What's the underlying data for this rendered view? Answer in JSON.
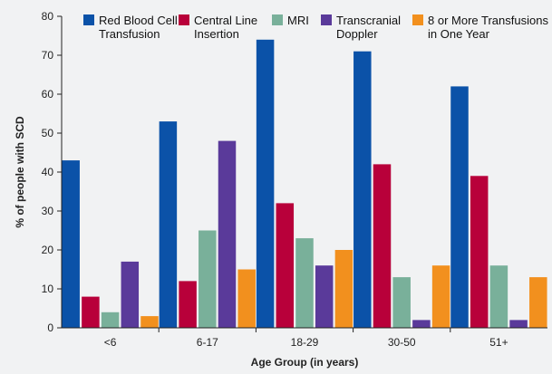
{
  "chart_data": {
    "type": "bar",
    "categories": [
      "<6",
      "6-17",
      "18-29",
      "30-50",
      "51+"
    ],
    "series": [
      {
        "name": "Red Blood Cell Transfusion",
        "name_lines": [
          "Red Blood Cell",
          "Transfusion"
        ],
        "color": "#0b52a8",
        "values": [
          43,
          53,
          74,
          71,
          62
        ]
      },
      {
        "name": "Central Line Insertion",
        "name_lines": [
          "Central Line",
          "Insertion"
        ],
        "color": "#b8003a",
        "values": [
          8,
          12,
          32,
          42,
          39
        ]
      },
      {
        "name": "MRI",
        "name_lines": [
          "MRI"
        ],
        "color": "#79b09a",
        "values": [
          4,
          25,
          23,
          13,
          16
        ]
      },
      {
        "name": "Transcranial Doppler",
        "name_lines": [
          "Transcranial",
          "Doppler"
        ],
        "color": "#5a3a9a",
        "values": [
          17,
          48,
          16,
          2,
          2
        ]
      },
      {
        "name": "8 or More Transfusions in One Year",
        "name_lines": [
          "8 or More Transfusions",
          "in One Year"
        ],
        "color": "#f2901e",
        "values": [
          3,
          15,
          20,
          16,
          13
        ]
      }
    ],
    "xlabel": "Age Group (in years)",
    "ylabel": "% of people with SCD",
    "ylim": [
      0,
      80
    ],
    "yticks": [
      0,
      10,
      20,
      30,
      40,
      50,
      60,
      70,
      80
    ],
    "grid": false,
    "legend": "top"
  }
}
